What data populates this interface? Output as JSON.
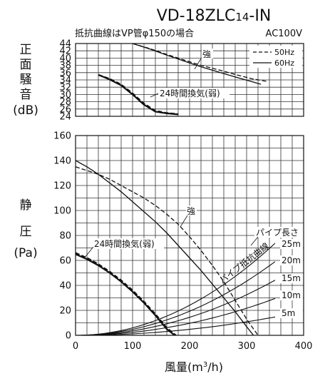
{
  "model_prefix": "VD-18ZLC",
  "model_sub": "14",
  "model_suffix": "-IN",
  "note": "抵抗曲線はVP管φ150の場合",
  "voltage": "AC100V",
  "chart_data": [
    {
      "type": "line",
      "ylabel": "正面騒音(dB)",
      "ylabel_chars": [
        "正",
        "面",
        "騒",
        "音"
      ],
      "ylabel_unit": "(dB)",
      "xlim": [
        0,
        400
      ],
      "ylim": [
        24,
        44
      ],
      "yticks": [
        24,
        26,
        28,
        30,
        32,
        34,
        36,
        38,
        40,
        42,
        44
      ],
      "legend": [
        {
          "label": "50Hz",
          "style": "dashed"
        },
        {
          "label": "60Hz",
          "style": "solid"
        }
      ],
      "legend_position": "top-right",
      "series": [
        {
          "label": "強",
          "freq": "50Hz",
          "x": [
            100,
            130,
            160,
            190,
            220,
            250,
            280,
            310,
            335
          ],
          "y": [
            44,
            42.6,
            41,
            39.5,
            38,
            36.8,
            35.5,
            34.3,
            33.6
          ]
        },
        {
          "label": "強",
          "freq": "60Hz",
          "x": [
            100,
            130,
            160,
            190,
            220,
            250,
            280,
            310,
            325
          ],
          "y": [
            44,
            42.5,
            40.8,
            39.2,
            37.6,
            36.2,
            34.8,
            33.5,
            32.8
          ]
        },
        {
          "label": "24時間換気(弱)",
          "freq": "50Hz",
          "x": [
            40,
            60,
            80,
            100,
            120,
            140,
            160,
            180
          ],
          "y": [
            35.4,
            34.3,
            32.7,
            30.3,
            27.5,
            25.5,
            24.9,
            24.6
          ]
        },
        {
          "label": "24時間換気(弱)",
          "freq": "60Hz",
          "x": [
            40,
            60,
            80,
            100,
            120,
            140,
            160,
            180
          ],
          "y": [
            35.4,
            34.1,
            32.5,
            30,
            27.2,
            25.3,
            24.8,
            24.5
          ]
        }
      ],
      "annotations": [
        "強",
        "24時間換気(弱)"
      ]
    },
    {
      "type": "line",
      "xlabel": "風量(m³/h)",
      "xlabel_text": "風量(m",
      "xlabel_sup": "3",
      "xlabel_end": "/h)",
      "ylabel": "静圧(Pa)",
      "ylabel_chars": [
        "静",
        "圧"
      ],
      "ylabel_unit": "(Pa)",
      "xlim": [
        0,
        400
      ],
      "ylim": [
        0,
        160
      ],
      "xticks": [
        0,
        100,
        200,
        300,
        400
      ],
      "yticks": [
        0,
        20,
        40,
        60,
        80,
        100,
        120,
        140,
        160
      ],
      "series": [
        {
          "label": "強",
          "freq": "50Hz",
          "x": [
            0,
            20,
            40,
            60,
            80,
            100,
            120,
            140,
            160,
            180,
            200,
            220,
            240,
            260,
            280,
            300,
            320
          ],
          "y": [
            135,
            132,
            129,
            125,
            120,
            115,
            110,
            104,
            97,
            89,
            79,
            68,
            56,
            43,
            28,
            13,
            0
          ]
        },
        {
          "label": "強",
          "freq": "60Hz",
          "x": [
            0,
            20,
            40,
            60,
            80,
            100,
            120,
            140,
            160,
            180,
            200,
            220,
            240,
            260,
            280,
            300,
            312
          ],
          "y": [
            140,
            135,
            129,
            122,
            115,
            107,
            99,
            91,
            82,
            72,
            62,
            52,
            41,
            30,
            19,
            7,
            0
          ]
        },
        {
          "label": "24時間換気(弱)",
          "freq": "50Hz",
          "x": [
            0,
            20,
            40,
            60,
            80,
            100,
            120,
            140,
            160,
            176
          ],
          "y": [
            66,
            62,
            57,
            51,
            44,
            36,
            27,
            17,
            6,
            0
          ]
        },
        {
          "label": "24時間換気(弱)",
          "freq": "60Hz",
          "x": [
            0,
            20,
            40,
            60,
            80,
            100,
            120,
            140,
            160,
            174
          ],
          "y": [
            65,
            61,
            56,
            50,
            43,
            35,
            26,
            16,
            5,
            0
          ]
        }
      ],
      "resistance_title": "パイプ長さ",
      "resistance_curve_label": "パイプ抵抗曲線",
      "resistance_curves": [
        {
          "label": "25m",
          "k": 0.000602
        },
        {
          "label": "20m",
          "k": 0.000482
        },
        {
          "label": "15m",
          "k": 0.000361
        },
        {
          "label": "10m",
          "k": 0.000241
        },
        {
          "label": "5m",
          "k": 0.00012
        }
      ],
      "annotations": [
        "強",
        "24時間換気(弱)"
      ]
    }
  ]
}
